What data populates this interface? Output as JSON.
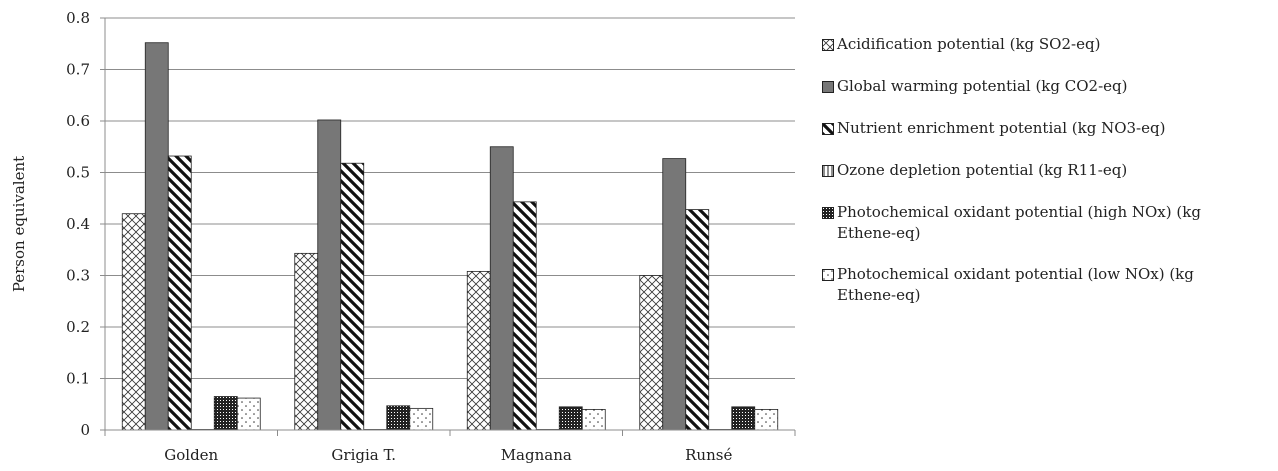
{
  "chart_data": {
    "type": "bar",
    "categories": [
      "Golden",
      "Grigia T.",
      "Magnana",
      "Runsé"
    ],
    "series": [
      {
        "name": "Acidification potential (kg SO2-eq)",
        "pattern": "crosshatch",
        "values": [
          0.42,
          0.343,
          0.308,
          0.3
        ]
      },
      {
        "name": "Global warming potential (kg CO2-eq)",
        "pattern": "solid-gray",
        "values": [
          0.752,
          0.602,
          0.55,
          0.527
        ]
      },
      {
        "name": "Nutrient enrichment potential (kg NO3-eq)",
        "pattern": "diagonal-stripes",
        "values": [
          0.532,
          0.518,
          0.443,
          0.428
        ]
      },
      {
        "name": "Ozone depletion potential (kg R11-eq)",
        "pattern": "vertical-lines",
        "values": [
          0.001,
          0.001,
          0.001,
          0.001
        ]
      },
      {
        "name": "Photochemical oxidant potential (high NOx) (kg Ethene-eq)",
        "pattern": "dense-dots",
        "values": [
          0.065,
          0.047,
          0.045,
          0.045
        ]
      },
      {
        "name": "Photochemical oxidant potential (low NOx) (kg Ethene-eq)",
        "pattern": "sparse-dots",
        "values": [
          0.062,
          0.042,
          0.04,
          0.04
        ]
      }
    ],
    "yticks": [
      "0",
      "0.1",
      "0.2",
      "0.3",
      "0.4",
      "0.5",
      "0.6",
      "0.7",
      "0.8"
    ],
    "ylim": [
      0,
      0.8
    ],
    "ylabel": "Person equivalent",
    "xlabel": "",
    "grid": true,
    "legend_position": "right"
  }
}
